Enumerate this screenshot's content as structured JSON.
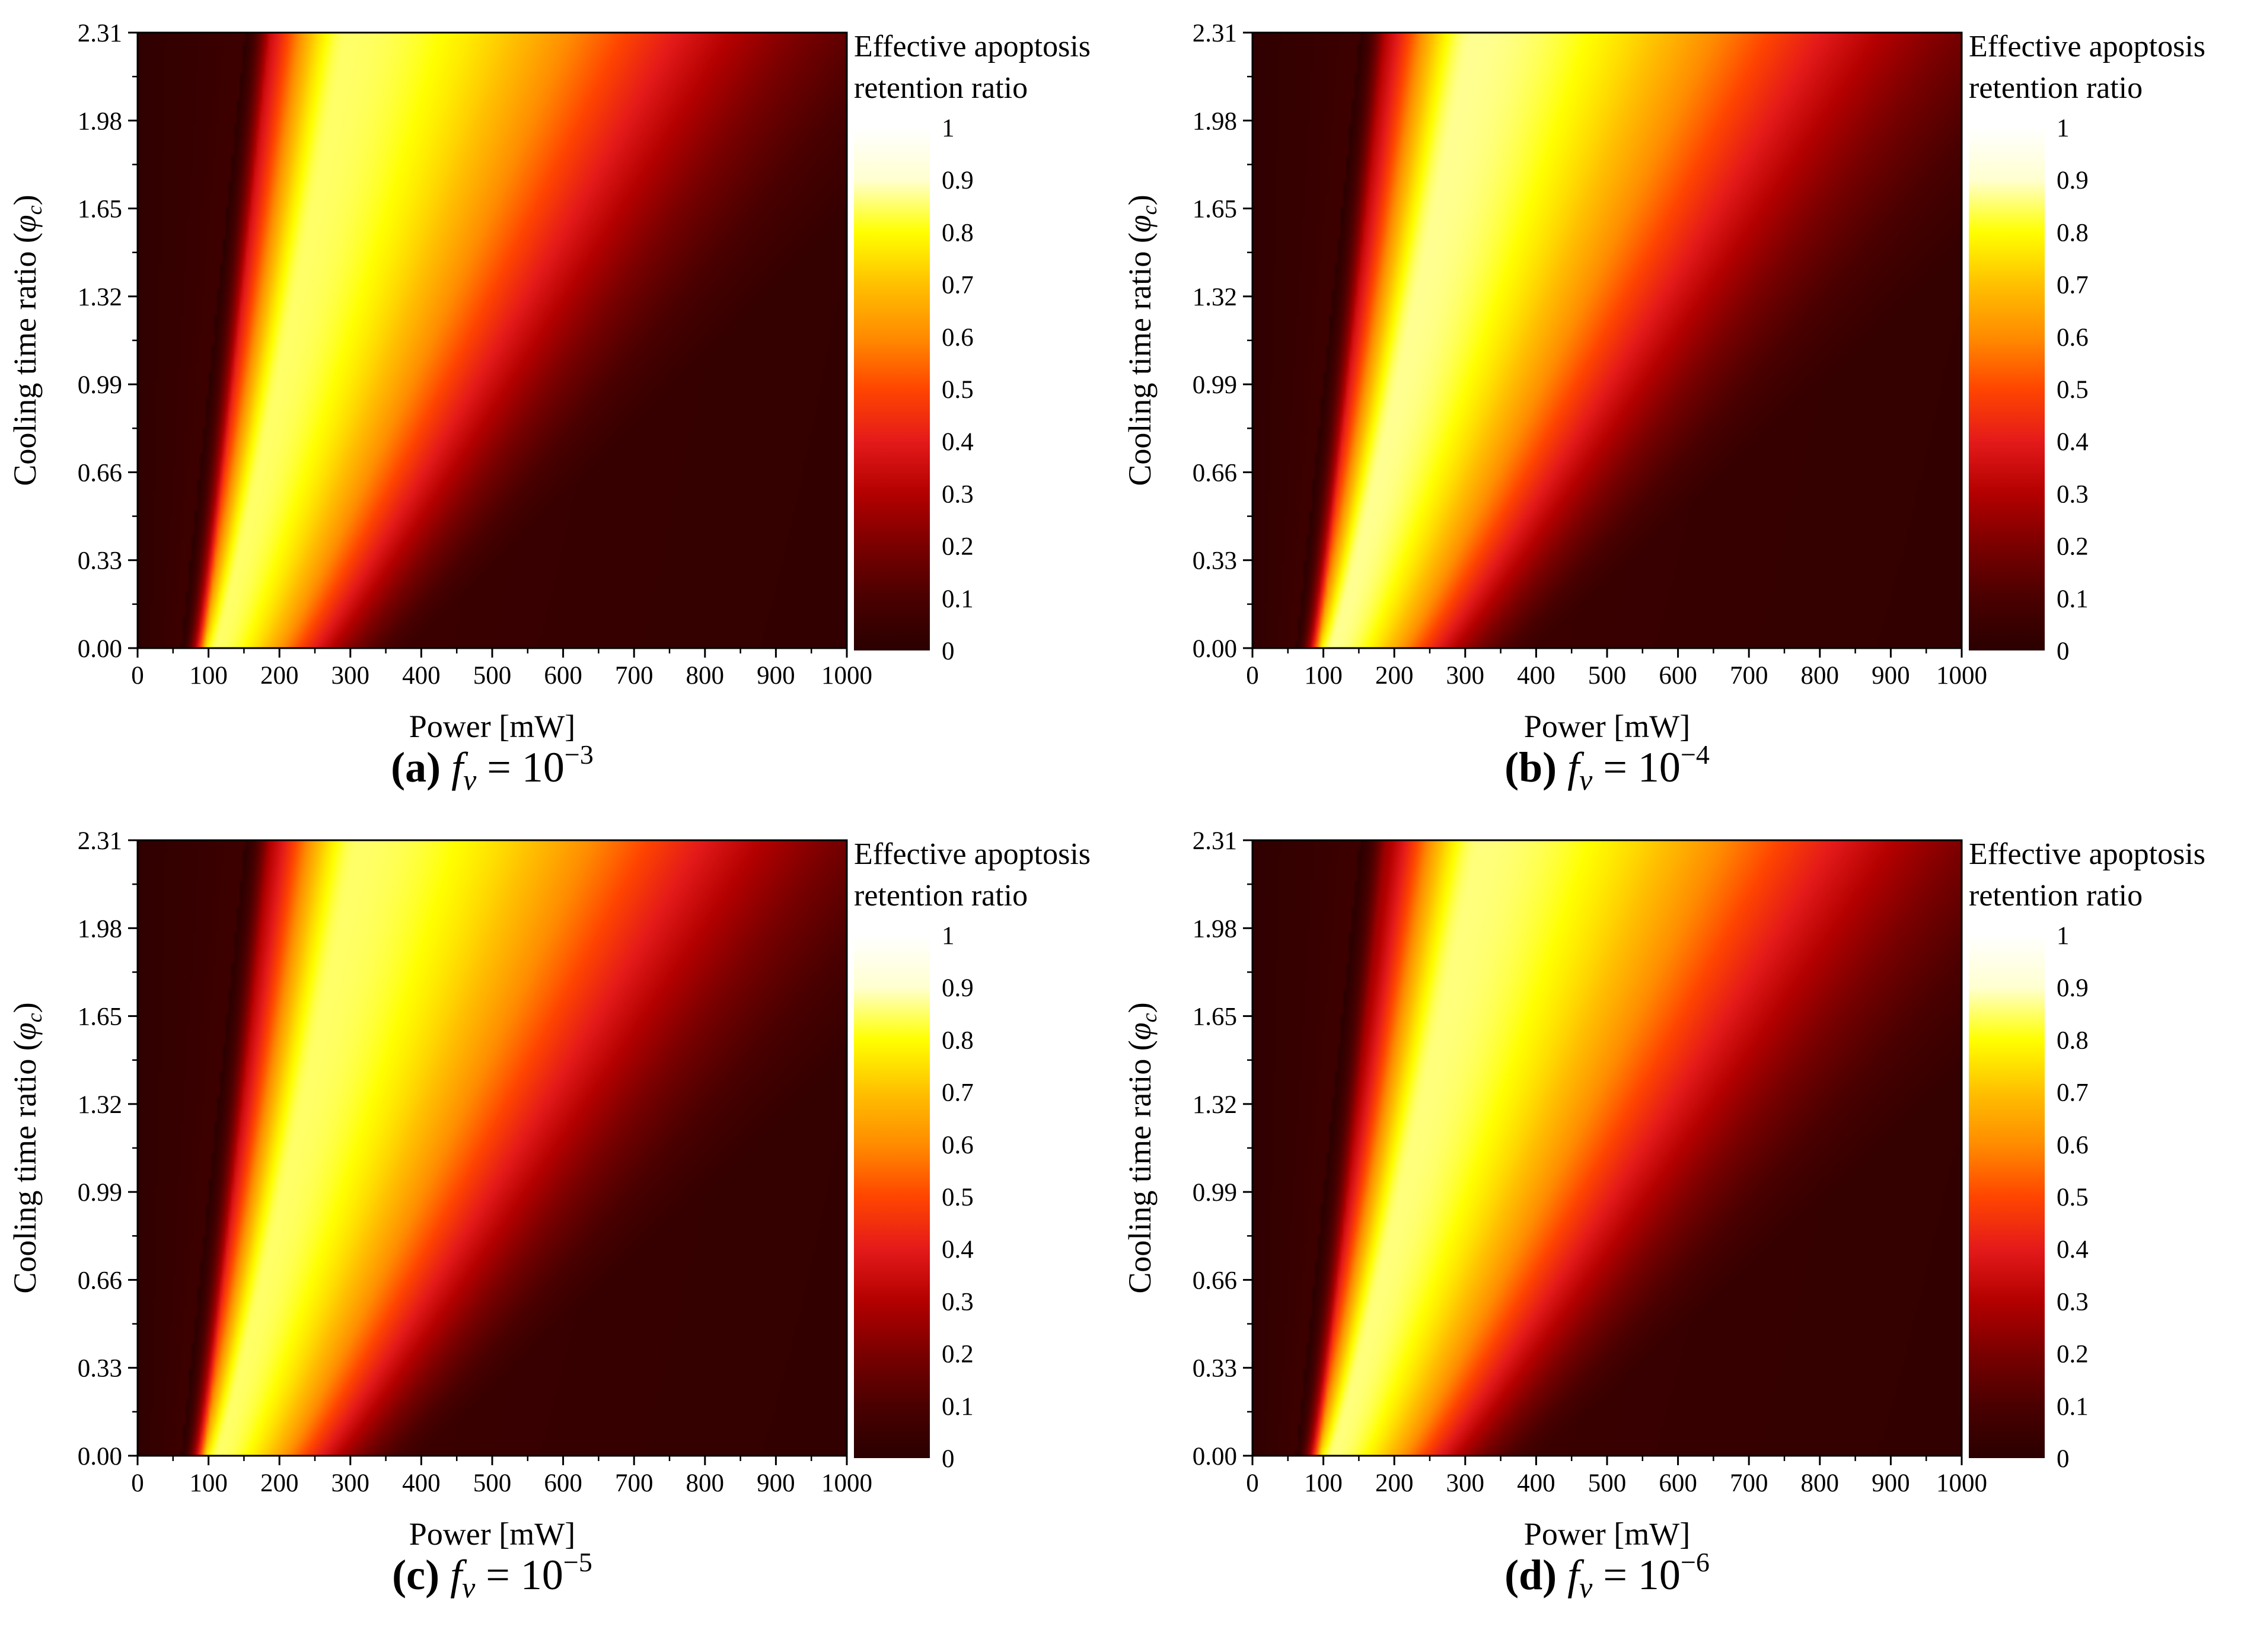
{
  "figure": {
    "colormap": [
      "#2a0000",
      "#4a0000",
      "#7a0000",
      "#b30000",
      "#e41a1a",
      "#ff4500",
      "#ff8c00",
      "#ffc000",
      "#ffff00",
      "#ffffd0",
      "#ffffff"
    ],
    "background": "#ffffff"
  },
  "chart_data": [
    {
      "type": "heatmap",
      "panel": "a",
      "caption": {
        "letter": "(a)",
        "symbol": "f",
        "subscript": "v",
        "rest": " = 10",
        "exponent": "−3"
      },
      "xlabel": "Power [mW]",
      "ylabel_text": "Cooling time ratio (",
      "ylabel_symbol": "φ",
      "ylabel_subscript": "c",
      "ylabel_close": ")",
      "xlim": [
        0,
        1000
      ],
      "ylim": [
        0,
        2.31
      ],
      "xticks": [
        "0",
        "100",
        "200",
        "300",
        "400",
        "500",
        "600",
        "700",
        "800",
        "900",
        "1000"
      ],
      "yticks": [
        "0.00",
        "0.33",
        "0.66",
        "0.99",
        "1.32",
        "1.65",
        "1.98",
        "2.31"
      ],
      "colorbar": {
        "title_line1": "Effective apoptosis",
        "title_line2": "retention ratio",
        "ticks": [
          "0",
          "0.1",
          "0.2",
          "0.3",
          "0.4",
          "0.5",
          "0.6",
          "0.7",
          "0.8",
          "0.9",
          "1"
        ],
        "range": [
          0,
          1
        ]
      },
      "ridge": {
        "peak_power_at_phi0_mW": 110,
        "peak_power_at_phimax_mW": 295,
        "peak_value": 0.85,
        "left_width_mW": 40,
        "right_width_mW": 210
      }
    },
    {
      "type": "heatmap",
      "panel": "b",
      "caption": {
        "letter": "(b)",
        "symbol": "f",
        "subscript": "v",
        "rest": " = 10",
        "exponent": "−4"
      },
      "xlabel": "Power [mW]",
      "ylabel_text": "Cooling time ratio (",
      "ylabel_symbol": "φ",
      "ylabel_subscript": "c",
      "ylabel_close": ")",
      "xlim": [
        0,
        1000
      ],
      "ylim": [
        0,
        2.31
      ],
      "xticks": [
        "0",
        "100",
        "200",
        "300",
        "400",
        "500",
        "600",
        "700",
        "800",
        "900",
        "1000"
      ],
      "yticks": [
        "0.00",
        "0.33",
        "0.66",
        "0.99",
        "1.32",
        "1.65",
        "1.98",
        "2.31"
      ],
      "colorbar": {
        "title_line1": "Effective apoptosis",
        "title_line2": "retention ratio",
        "ticks": [
          "0",
          "0.1",
          "0.2",
          "0.3",
          "0.4",
          "0.5",
          "0.6",
          "0.7",
          "0.8",
          "0.9",
          "1"
        ],
        "range": [
          0,
          1
        ]
      },
      "ridge": {
        "peak_power_at_phi0_mW": 112,
        "peak_power_at_phimax_mW": 310,
        "peak_value": 0.87,
        "left_width_mW": 42,
        "right_width_mW": 220
      }
    },
    {
      "type": "heatmap",
      "panel": "c",
      "caption": {
        "letter": "(c)",
        "symbol": "f",
        "subscript": "v",
        "rest": " = 10",
        "exponent": "−5"
      },
      "xlabel": "Power [mW]",
      "ylabel_text": "Cooling time ratio (",
      "ylabel_symbol": "φ",
      "ylabel_subscript": "c",
      "ylabel_close": ")",
      "xlim": [
        0,
        1000
      ],
      "ylim": [
        0,
        2.31
      ],
      "xticks": [
        "0",
        "100",
        "200",
        "300",
        "400",
        "500",
        "600",
        "700",
        "800",
        "900",
        "1000"
      ],
      "yticks": [
        "0.00",
        "0.33",
        "0.66",
        "0.99",
        "1.32",
        "1.65",
        "1.98",
        "2.31"
      ],
      "colorbar": {
        "title_line1": "Effective apoptosis",
        "title_line2": "retention ratio",
        "ticks": [
          "0",
          "0.1",
          "0.2",
          "0.3",
          "0.4",
          "0.5",
          "0.6",
          "0.7",
          "0.8",
          "0.9",
          "1"
        ],
        "range": [
          0,
          1
        ]
      },
      "ridge": {
        "peak_power_at_phi0_mW": 112,
        "peak_power_at_phimax_mW": 310,
        "peak_value": 0.85,
        "left_width_mW": 42,
        "right_width_mW": 220
      }
    },
    {
      "type": "heatmap",
      "panel": "d",
      "caption": {
        "letter": "(d)",
        "symbol": "f",
        "subscript": "v",
        "rest": " = 10",
        "exponent": "−6"
      },
      "xlabel": "Power [mW]",
      "ylabel_text": "Cooling time ratio (",
      "ylabel_symbol": "φ",
      "ylabel_subscript": "c",
      "ylabel_close": ")",
      "xlim": [
        0,
        1000
      ],
      "ylim": [
        0,
        2.31
      ],
      "xticks": [
        "0",
        "100",
        "200",
        "300",
        "400",
        "500",
        "600",
        "700",
        "800",
        "900",
        "1000"
      ],
      "yticks": [
        "0.00",
        "0.33",
        "0.66",
        "0.99",
        "1.32",
        "1.65",
        "1.98",
        "2.31"
      ],
      "colorbar": {
        "title_line1": "Effective apoptosis",
        "title_line2": "retention ratio",
        "ticks": [
          "0",
          "0.1",
          "0.2",
          "0.3",
          "0.4",
          "0.5",
          "0.6",
          "0.7",
          "0.8",
          "0.9",
          "1"
        ],
        "range": [
          0,
          1
        ]
      },
      "ridge": {
        "peak_power_at_phi0_mW": 112,
        "peak_power_at_phimax_mW": 320,
        "peak_value": 0.86,
        "left_width_mW": 42,
        "right_width_mW": 225
      }
    }
  ]
}
